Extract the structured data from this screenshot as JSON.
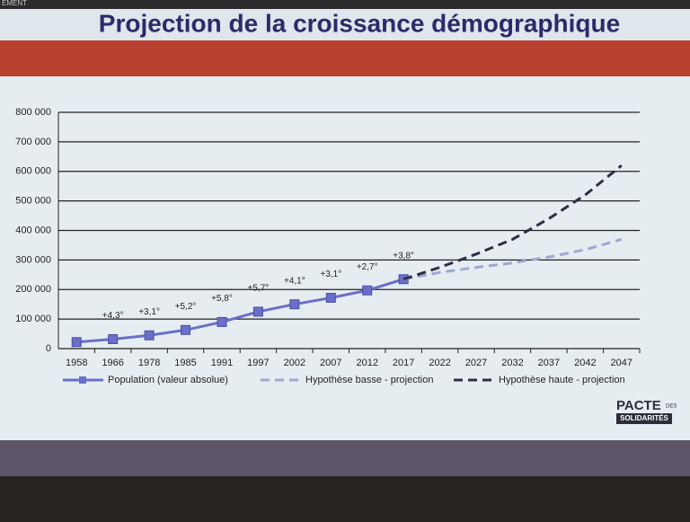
{
  "header_fragment": "EMENT",
  "chart_data": {
    "type": "line",
    "title": "Projection de la croissance démographique",
    "categories": [
      "1958",
      "1966",
      "1978",
      "1985",
      "1991",
      "1997",
      "2002",
      "2007",
      "2012",
      "2017",
      "2022",
      "2027",
      "2032",
      "2037",
      "2042",
      "2047"
    ],
    "series": [
      {
        "name": "Population (valeur absolue)",
        "color": "#6b6fc9",
        "dash": "solid",
        "markers": true,
        "values": [
          22000,
          32000,
          45000,
          63000,
          90000,
          125000,
          150000,
          172000,
          197000,
          235000,
          null,
          null,
          null,
          null,
          null,
          null
        ]
      },
      {
        "name": "Hypothèse basse - projection",
        "color": "#9fa8d4",
        "dash": "dashed",
        "markers": false,
        "values": [
          null,
          null,
          null,
          null,
          null,
          null,
          null,
          null,
          null,
          235000,
          258000,
          275000,
          290000,
          310000,
          335000,
          370000
        ]
      },
      {
        "name": "Hypothèse haute - projection",
        "color": "#2e2f45",
        "dash": "dashed",
        "markers": false,
        "values": [
          null,
          null,
          null,
          null,
          null,
          null,
          null,
          null,
          null,
          235000,
          275000,
          320000,
          370000,
          440000,
          520000,
          620000
        ]
      }
    ],
    "ylim": [
      0,
      800000
    ],
    "yticks": [
      0,
      {
        "value": 100000,
        "label": "100 000"
      },
      {
        "value": 200000,
        "label": "200 000"
      },
      {
        "value": 300000,
        "label": "300 000"
      },
      {
        "value": 400000,
        "label": "400 000"
      },
      {
        "value": 500000,
        "label": "500 000"
      },
      {
        "value": 600000,
        "label": "600 000"
      },
      {
        "value": 700000,
        "label": "700 000"
      },
      {
        "value": 800000,
        "label": "800 000"
      }
    ],
    "grid": true,
    "legend": "bottom",
    "annotations": [
      "+4,3°",
      "+3,1°",
      "+5,2°",
      "+5,8°",
      "+5,7°",
      "+4,1°",
      "+3,1°",
      "+2,7°",
      "+3,8°"
    ]
  },
  "logo": {
    "line1": "PACTE",
    "side": "DES",
    "line2": "SOLIDARITÉS"
  }
}
